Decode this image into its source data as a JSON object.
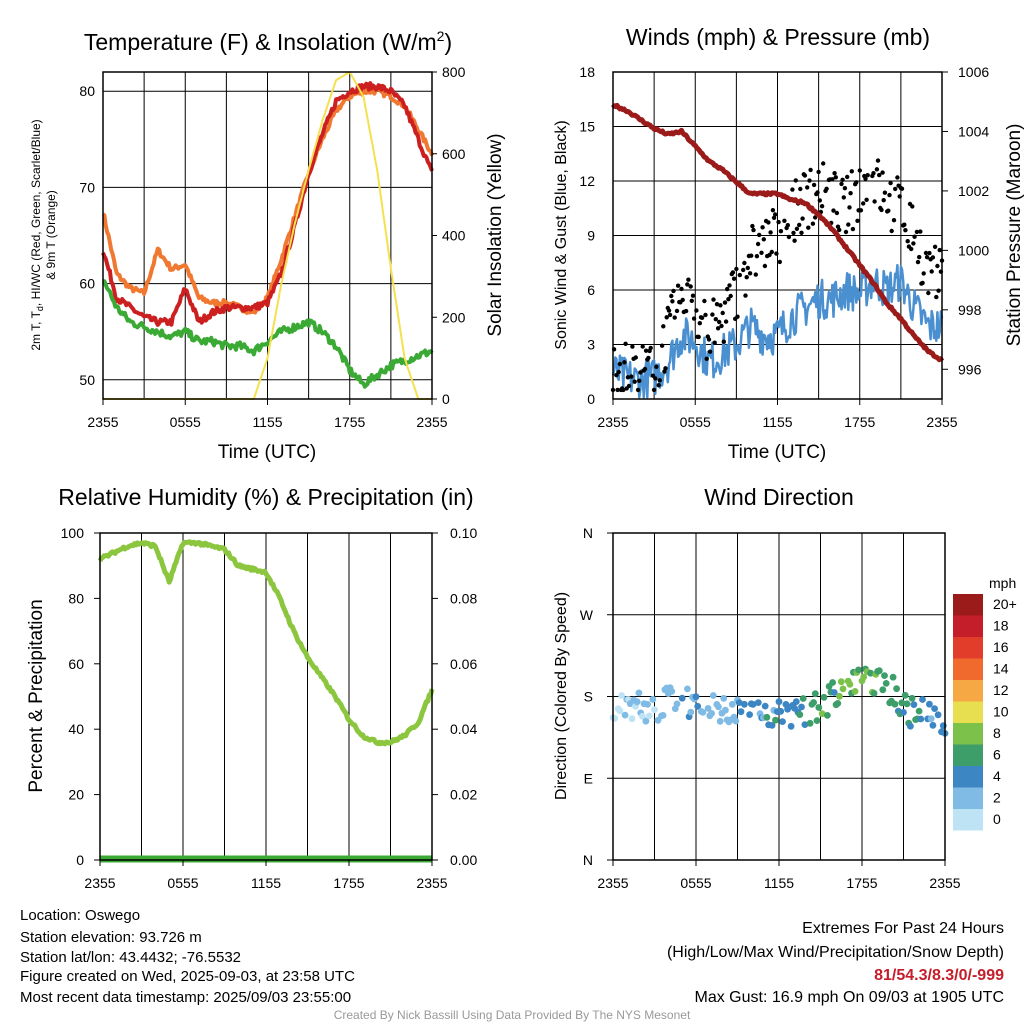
{
  "panels": {
    "temp": {
      "title": "Temperature (F) & Insolation (W/m",
      "title_sup": "2",
      "title_end": ")",
      "ylabel_left_line1": "2m T, T",
      "ylabel_left_sub": "d",
      "ylabel_left_line1_end": ", HI/WC (Red, Green, Scarlet/Blue)",
      "ylabel_left_line2": "& 9m T (Orange)",
      "ylabel_right": "Solar Insolation (Yellow)",
      "xlabel": "Time (UTC)"
    },
    "wind": {
      "title": "Winds (mph) & Pressure (mb)",
      "ylabel_left": "Sonic Wind & Gust (Blue, Black)",
      "ylabel_right": "Station Pressure (Maroon)",
      "xlabel": "Time (UTC)"
    },
    "rh": {
      "title": "Relative Humidity (%) & Precipitation (in)",
      "ylabel_left": "Percent & Precipitation"
    },
    "dir": {
      "title": "Wind Direction",
      "ylabel_left": "Direction (Colored By Speed)",
      "legend_title": "mph"
    }
  },
  "info": {
    "location": "Location: Oswego",
    "elevation": "Station elevation: 93.726 m",
    "latlon": "Station lat/lon: 43.4432; -76.5532",
    "created": "Figure created on Wed, 2025-09-03, at 23:58 UTC",
    "recent": "Most recent data timestamp: 2025/09/03 23:55:00",
    "extremes_title": "Extremes For Past 24 Hours",
    "extremes_sub": "(High/Low/Max Wind/Precipitation/Snow Depth)",
    "extremes_values": "81/54.3/8.3/0/-999",
    "max_gust": "Max Gust: 16.9 mph On 09/03 at 1905 UTC",
    "credit": "Created By Nick Bassill Using Data Provided By The NYS Mesonet"
  },
  "chart_data": [
    {
      "type": "line",
      "title": "Temperature (F) & Insolation (W/m2)",
      "xlabel": "Time (UTC)",
      "ylabel": "2m T, Td, HI/WC (Red, Green, Scarlet/Blue) & 9m T (Orange)",
      "ylabel_right": "Solar Insolation (Yellow)",
      "x_ticks": [
        "2355",
        "0555",
        "1155",
        "1755",
        "2355"
      ],
      "ylim": [
        48,
        82
      ],
      "y_ticks": [
        50,
        60,
        70,
        80
      ],
      "ylim_right": [
        0,
        800
      ],
      "y_ticks_right": [
        0,
        200,
        400,
        600,
        800
      ],
      "colors": {
        "temp_2m": "#cc2020",
        "temp_9m": "#f07830",
        "dewpoint": "#3aaa35",
        "heat_index": "#cc2020",
        "insolation": "#f5e050"
      },
      "x_hours": [
        0,
        1,
        2,
        3,
        4,
        5,
        6,
        7,
        8,
        9,
        10,
        11,
        12,
        13,
        14,
        15,
        16,
        17,
        18,
        19,
        20,
        21,
        22,
        23,
        24
      ],
      "series": [
        {
          "name": "2m T",
          "axis": "left",
          "values": [
            63.5,
            58.5,
            57.5,
            56.5,
            56,
            56,
            59.5,
            56,
            57,
            57.5,
            57.5,
            57.5,
            58,
            61,
            66,
            71.5,
            75.5,
            79,
            80,
            80.5,
            80.5,
            80,
            78.5,
            75,
            71.5
          ]
        },
        {
          "name": "9m T",
          "axis": "left",
          "values": [
            67.5,
            61,
            59.5,
            59,
            63.5,
            61.5,
            62,
            58.5,
            58,
            58,
            57.5,
            57,
            58.5,
            62.5,
            67,
            71.5,
            75,
            78,
            79.5,
            80,
            80,
            79.5,
            78.5,
            76,
            73.5
          ]
        },
        {
          "name": "Td",
          "axis": "left",
          "values": [
            60.5,
            57.5,
            56,
            55.5,
            55,
            54.5,
            55,
            54,
            54,
            53.5,
            53.5,
            53,
            54,
            55,
            55.5,
            56,
            55,
            53.5,
            51,
            49.5,
            50.5,
            51.5,
            52,
            52.5,
            53
          ]
        },
        {
          "name": "Solar Insolation",
          "axis": "right",
          "values": [
            0,
            0,
            0,
            0,
            0,
            0,
            0,
            0,
            0,
            0,
            0,
            0,
            100,
            280,
            430,
            560,
            680,
            780,
            800,
            740,
            560,
            320,
            100,
            0,
            0
          ]
        }
      ]
    },
    {
      "type": "line",
      "title": "Winds (mph) & Pressure (mb)",
      "xlabel": "Time (UTC)",
      "ylabel": "Sonic Wind & Gust (Blue, Black)",
      "ylabel_right": "Station Pressure (Maroon)",
      "x_ticks": [
        "2355",
        "0555",
        "1155",
        "1755",
        "2355"
      ],
      "ylim": [
        0,
        18
      ],
      "y_ticks": [
        0,
        3,
        6,
        9,
        12,
        15,
        18
      ],
      "ylim_right": [
        995.0,
        1006.0
      ],
      "y_ticks_right": [
        996,
        998,
        1000,
        1002,
        1004,
        1006
      ],
      "colors": {
        "wind": "#4a90d0",
        "gust": "#000000",
        "pressure": "#9b1a1a"
      },
      "x_hours": [
        0,
        1,
        2,
        3,
        4,
        5,
        6,
        7,
        8,
        9,
        10,
        11,
        12,
        13,
        14,
        15,
        16,
        17,
        18,
        19,
        20,
        21,
        22,
        23,
        24
      ],
      "series": [
        {
          "name": "Sonic Wind",
          "axis": "left",
          "values": [
            1.5,
            1.2,
            1.0,
            1.2,
            2.0,
            3.5,
            3.2,
            2.0,
            2.5,
            3.0,
            4.0,
            3.5,
            3.5,
            4.5,
            5.0,
            5.5,
            5.5,
            6.0,
            5.8,
            6.5,
            6.0,
            6.5,
            5.0,
            4.0,
            4.0
          ]
        },
        {
          "name": "Gust",
          "axis": "left",
          "values": [
            1.7,
            1.5,
            1.5,
            1.6,
            3.5,
            5.5,
            5.0,
            3.5,
            4.5,
            6.0,
            8.0,
            8.5,
            9.0,
            10.0,
            11.0,
            11.5,
            11.0,
            10.5,
            11.5,
            12.0,
            11.0,
            10.5,
            9.0,
            7.0,
            6.5
          ]
        },
        {
          "name": "Station Pressure",
          "axis": "right",
          "values": [
            1004.9,
            1004.7,
            1004.4,
            1004.1,
            1003.9,
            1004.0,
            1003.5,
            1003.0,
            1002.7,
            1002.3,
            1001.9,
            1001.9,
            1001.9,
            1001.7,
            1001.6,
            1001.2,
            1000.7,
            1000.1,
            999.5,
            998.9,
            998.2,
            997.7,
            997.1,
            996.6,
            996.3
          ]
        }
      ]
    },
    {
      "type": "line",
      "title": "Relative Humidity (%) & Precipitation (in)",
      "ylabel": "Percent & Precipitation",
      "x_ticks": [
        "2355",
        "0555",
        "1155",
        "1755",
        "2355"
      ],
      "ylim": [
        0,
        100
      ],
      "y_ticks": [
        0,
        20,
        40,
        60,
        80,
        100
      ],
      "ylim_right": [
        0,
        0.1
      ],
      "y_ticks_right": [
        "0.00",
        "0.02",
        "0.04",
        "0.06",
        "0.08",
        "0.10"
      ],
      "colors": {
        "rh": "#8cc63f",
        "precip": "#3aaa35"
      },
      "x_hours": [
        0,
        1,
        2,
        3,
        4,
        5,
        6,
        7,
        8,
        9,
        10,
        11,
        12,
        13,
        14,
        15,
        16,
        17,
        18,
        19,
        20,
        21,
        22,
        23,
        24
      ],
      "series": [
        {
          "name": "Relative Humidity",
          "axis": "left",
          "values": [
            92,
            94,
            96,
            97,
            96,
            85,
            97,
            97,
            96,
            95,
            90,
            89,
            88,
            80,
            70,
            62,
            56,
            50,
            43,
            38,
            36,
            36,
            38,
            42,
            52
          ]
        },
        {
          "name": "Precipitation",
          "axis": "right",
          "values": [
            0,
            0,
            0,
            0,
            0,
            0,
            0,
            0,
            0,
            0,
            0,
            0,
            0,
            0,
            0,
            0,
            0,
            0,
            0,
            0,
            0,
            0,
            0,
            0,
            0
          ]
        }
      ]
    },
    {
      "type": "scatter",
      "title": "Wind Direction",
      "ylabel": "Direction (Colored By Speed)",
      "x_ticks": [
        "2355",
        "0555",
        "1155",
        "1755",
        "2355"
      ],
      "y_ticks": [
        "N",
        "E",
        "S",
        "W",
        "N"
      ],
      "ylim_degrees": [
        0,
        360
      ],
      "legend_title": "mph",
      "legend": {
        "labels": [
          "0",
          "2",
          "4",
          "6",
          "8",
          "10",
          "12",
          "14",
          "16",
          "18",
          "20+"
        ],
        "colors": [
          "#bde3f5",
          "#7fbbe5",
          "#3d86c4",
          "#3d9e6a",
          "#7cc24a",
          "#e8df50",
          "#f5a843",
          "#f06a2e",
          "#e23c2b",
          "#c41e2a",
          "#9b1a1a"
        ]
      },
      "x_hours": [
        0,
        1,
        2,
        3,
        4,
        5,
        6,
        7,
        8,
        9,
        10,
        11,
        12,
        13,
        14,
        15,
        16,
        17,
        18,
        19,
        20,
        21,
        22,
        23,
        24
      ],
      "series": [
        {
          "name": "Direction",
          "values": [
            170,
            168,
            172,
            162,
            175,
            176,
            172,
            166,
            170,
            160,
            170,
            163,
            160,
            158,
            165,
            170,
            180,
            188,
            200,
            195,
            190,
            168,
            160,
            160,
            155
          ]
        },
        {
          "name": "Speed",
          "values": [
            1,
            1,
            1,
            1,
            2,
            3,
            3,
            2,
            2,
            3,
            4,
            4,
            4,
            4,
            5,
            6,
            6,
            7,
            7,
            7,
            6,
            6,
            5,
            4,
            4
          ]
        }
      ]
    }
  ]
}
